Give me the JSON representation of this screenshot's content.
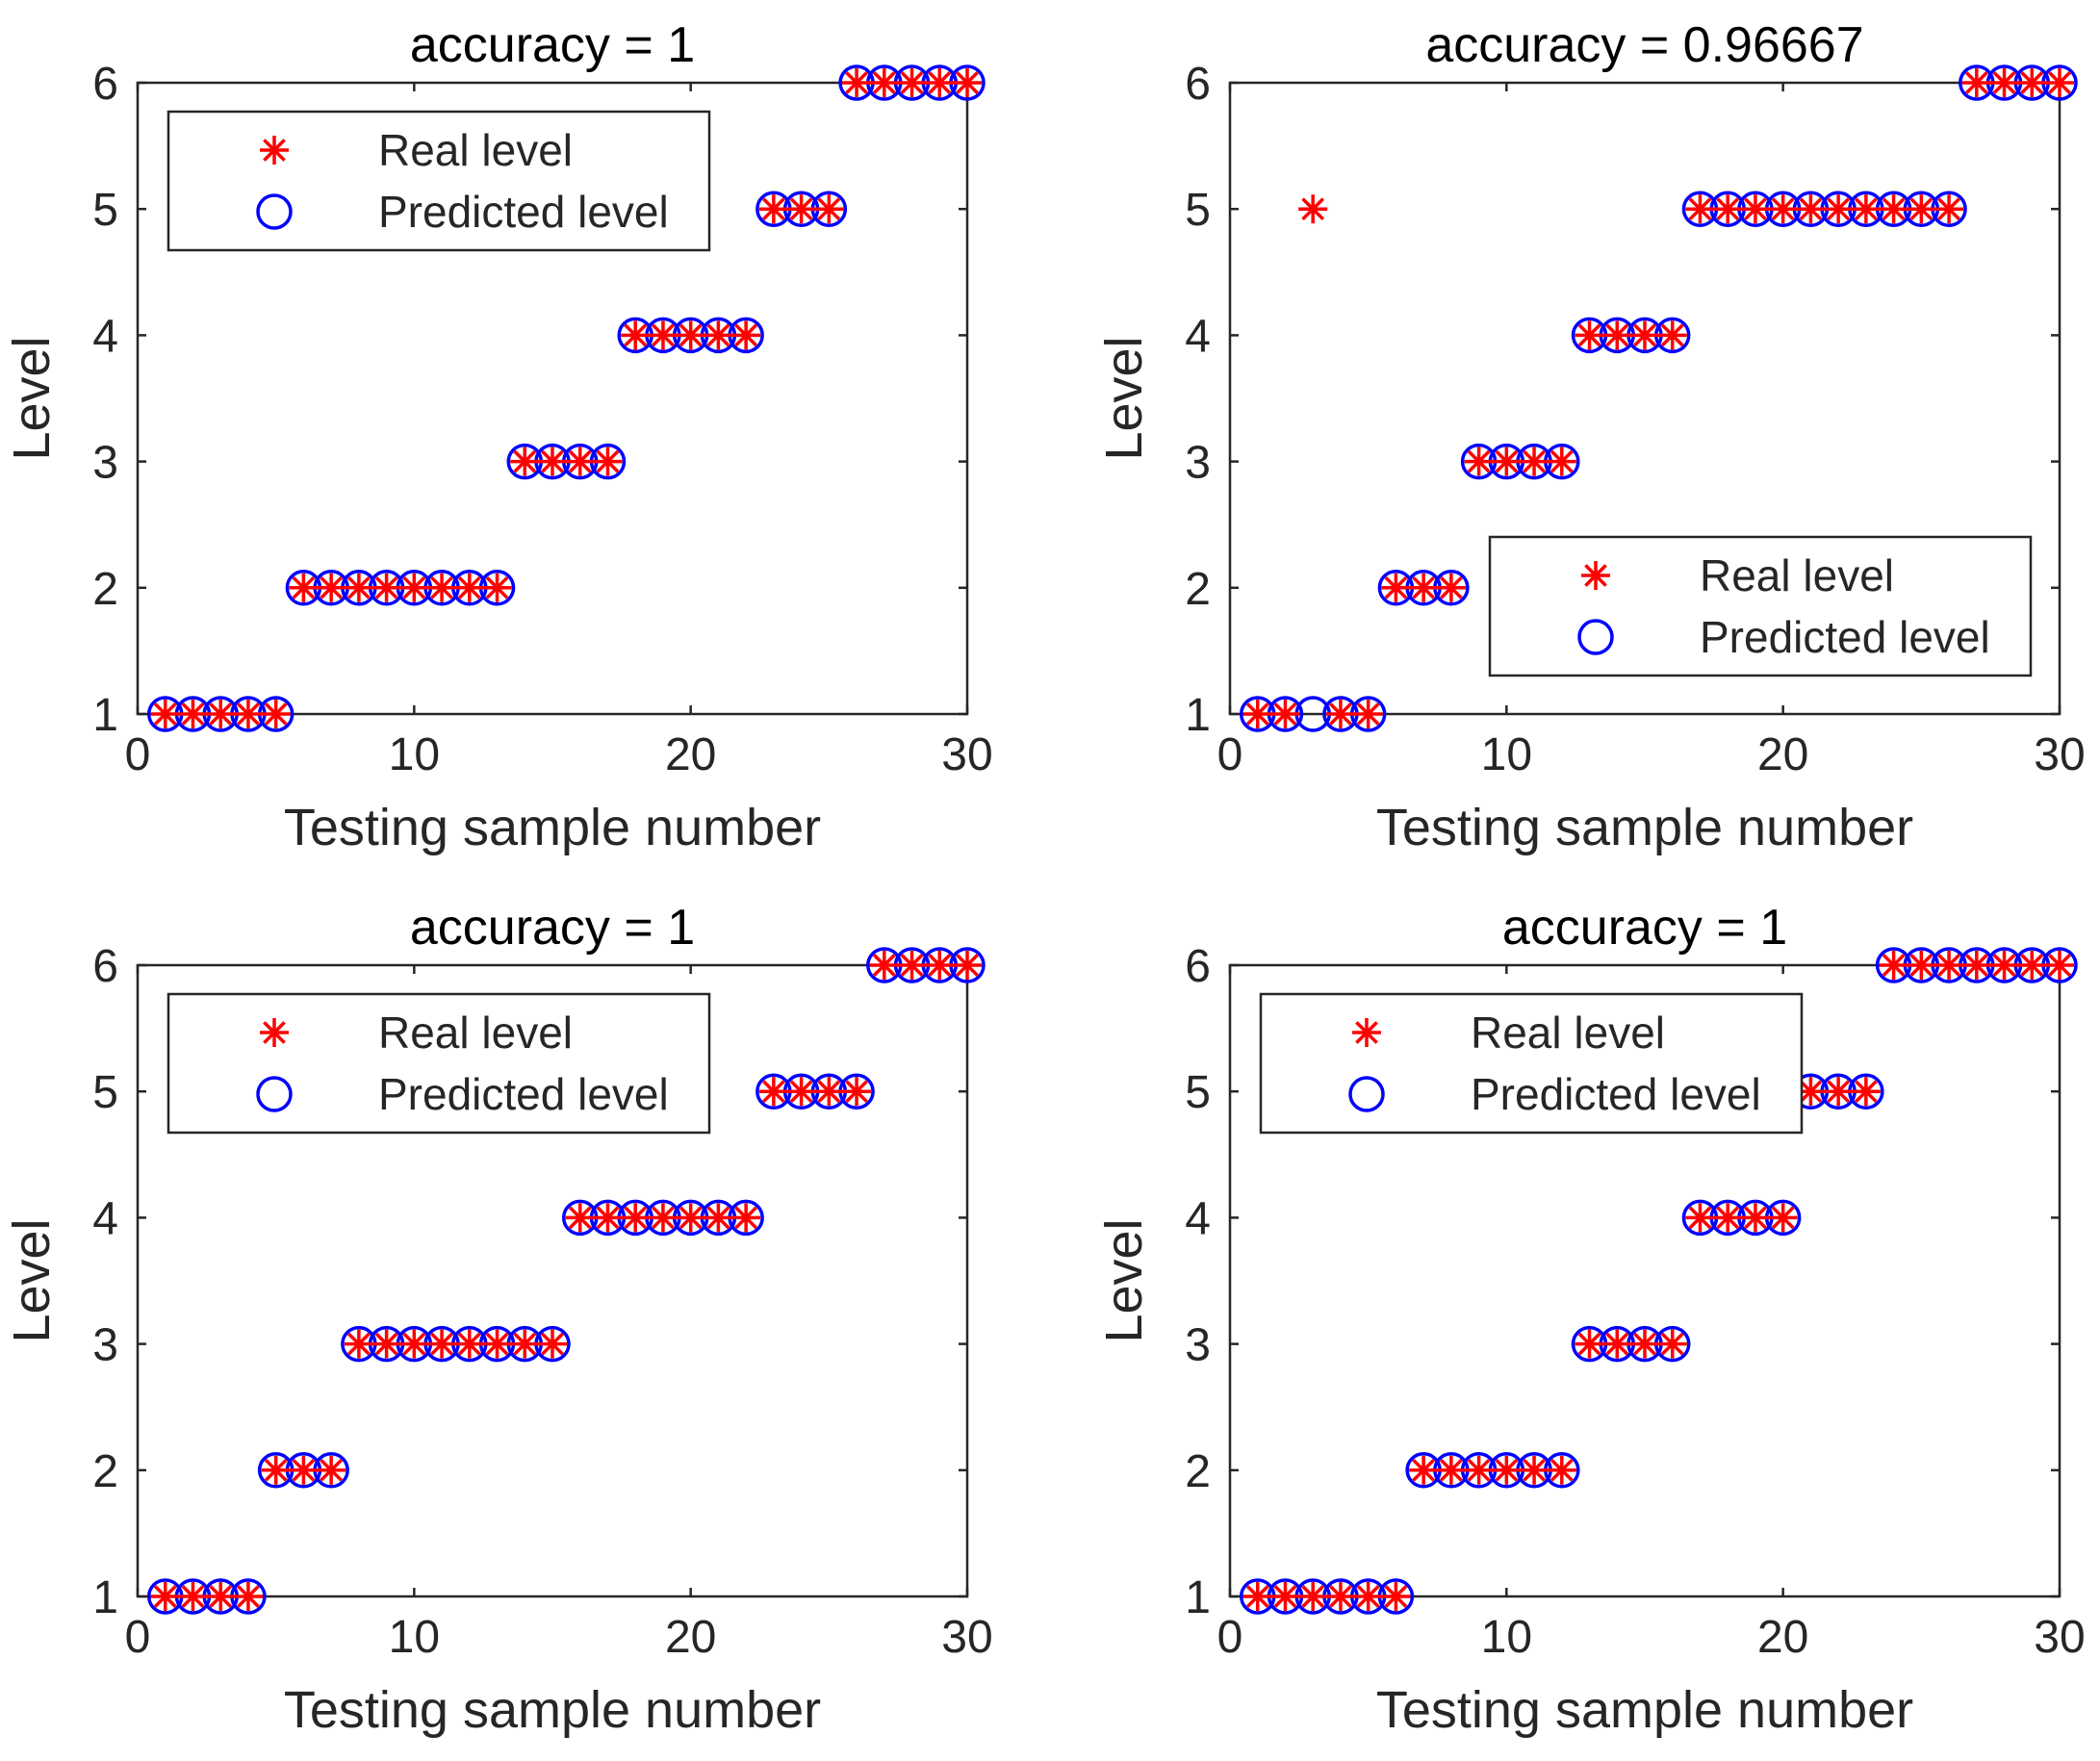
{
  "colors": {
    "real": "#ff0000",
    "predicted": "#0000ff",
    "axis": "#262626",
    "title": "#000000"
  },
  "chart_data": [
    {
      "type": "scatter",
      "title": "accuracy = 1",
      "xlabel": "Testing sample number",
      "ylabel": "Level",
      "xlim": [
        0,
        30
      ],
      "ylim": [
        1,
        6
      ],
      "xticks": [
        0,
        10,
        20,
        30
      ],
      "yticks": [
        1,
        2,
        3,
        4,
        5,
        6
      ],
      "legend": {
        "position": "top-left",
        "entries": [
          "Real level",
          "Predicted level"
        ]
      },
      "series": [
        {
          "name": "Real level",
          "marker": "asterisk",
          "x": [
            1,
            2,
            3,
            4,
            5,
            6,
            7,
            8,
            9,
            10,
            11,
            12,
            13,
            14,
            15,
            16,
            17,
            18,
            19,
            20,
            21,
            22,
            23,
            24,
            25,
            26,
            27,
            28,
            29,
            30
          ],
          "y": [
            1,
            1,
            1,
            1,
            1,
            2,
            2,
            2,
            2,
            2,
            2,
            2,
            2,
            3,
            3,
            3,
            3,
            4,
            4,
            4,
            4,
            4,
            5,
            5,
            5,
            6,
            6,
            6,
            6,
            6
          ]
        },
        {
          "name": "Predicted level",
          "marker": "circle",
          "x": [
            1,
            2,
            3,
            4,
            5,
            6,
            7,
            8,
            9,
            10,
            11,
            12,
            13,
            14,
            15,
            16,
            17,
            18,
            19,
            20,
            21,
            22,
            23,
            24,
            25,
            26,
            27,
            28,
            29,
            30
          ],
          "y": [
            1,
            1,
            1,
            1,
            1,
            2,
            2,
            2,
            2,
            2,
            2,
            2,
            2,
            3,
            3,
            3,
            3,
            4,
            4,
            4,
            4,
            4,
            5,
            5,
            5,
            6,
            6,
            6,
            6,
            6
          ]
        }
      ]
    },
    {
      "type": "scatter",
      "title": "accuracy = 0.96667",
      "xlabel": "Testing sample number",
      "ylabel": "Level",
      "xlim": [
        0,
        30
      ],
      "ylim": [
        1,
        6
      ],
      "xticks": [
        0,
        10,
        20,
        30
      ],
      "yticks": [
        1,
        2,
        3,
        4,
        5,
        6
      ],
      "legend": {
        "position": "bottom-right",
        "entries": [
          "Real level",
          "Predicted level"
        ]
      },
      "series": [
        {
          "name": "Real level",
          "marker": "asterisk",
          "x": [
            1,
            2,
            3,
            4,
            5,
            6,
            7,
            8,
            9,
            10,
            11,
            12,
            13,
            14,
            15,
            16,
            17,
            18,
            19,
            20,
            21,
            22,
            23,
            24,
            25,
            26,
            27,
            28,
            29,
            30
          ],
          "y": [
            1,
            1,
            5,
            1,
            1,
            2,
            2,
            2,
            3,
            3,
            3,
            3,
            4,
            4,
            4,
            4,
            5,
            5,
            5,
            5,
            5,
            5,
            5,
            5,
            5,
            5,
            6,
            6,
            6,
            6
          ]
        },
        {
          "name": "Predicted level",
          "marker": "circle",
          "x": [
            1,
            2,
            3,
            4,
            5,
            6,
            7,
            8,
            9,
            10,
            11,
            12,
            13,
            14,
            15,
            16,
            17,
            18,
            19,
            20,
            21,
            22,
            23,
            24,
            25,
            26,
            27,
            28,
            29,
            30
          ],
          "y": [
            1,
            1,
            1,
            1,
            1,
            2,
            2,
            2,
            3,
            3,
            3,
            3,
            4,
            4,
            4,
            4,
            5,
            5,
            5,
            5,
            5,
            5,
            5,
            5,
            5,
            5,
            6,
            6,
            6,
            6
          ]
        }
      ]
    },
    {
      "type": "scatter",
      "title": "accuracy = 1",
      "xlabel": "Testing sample number",
      "ylabel": "Level",
      "xlim": [
        0,
        30
      ],
      "ylim": [
        1,
        6
      ],
      "xticks": [
        0,
        10,
        20,
        30
      ],
      "yticks": [
        1,
        2,
        3,
        4,
        5,
        6
      ],
      "legend": {
        "position": "top-left",
        "entries": [
          "Real level",
          "Predicted level"
        ]
      },
      "series": [
        {
          "name": "Real level",
          "marker": "asterisk",
          "x": [
            1,
            2,
            3,
            4,
            5,
            6,
            7,
            8,
            9,
            10,
            11,
            12,
            13,
            14,
            15,
            16,
            17,
            18,
            19,
            20,
            21,
            22,
            23,
            24,
            25,
            26,
            27,
            28,
            29,
            30
          ],
          "y": [
            1,
            1,
            1,
            1,
            2,
            2,
            2,
            3,
            3,
            3,
            3,
            3,
            3,
            3,
            3,
            4,
            4,
            4,
            4,
            4,
            4,
            4,
            5,
            5,
            5,
            5,
            6,
            6,
            6,
            6
          ]
        },
        {
          "name": "Predicted level",
          "marker": "circle",
          "x": [
            1,
            2,
            3,
            4,
            5,
            6,
            7,
            8,
            9,
            10,
            11,
            12,
            13,
            14,
            15,
            16,
            17,
            18,
            19,
            20,
            21,
            22,
            23,
            24,
            25,
            26,
            27,
            28,
            29,
            30
          ],
          "y": [
            1,
            1,
            1,
            1,
            2,
            2,
            2,
            3,
            3,
            3,
            3,
            3,
            3,
            3,
            3,
            4,
            4,
            4,
            4,
            4,
            4,
            4,
            5,
            5,
            5,
            5,
            6,
            6,
            6,
            6
          ]
        }
      ]
    },
    {
      "type": "scatter",
      "title": "accuracy = 1",
      "xlabel": "Testing sample number",
      "ylabel": "Level",
      "xlim": [
        0,
        30
      ],
      "ylim": [
        1,
        6
      ],
      "xticks": [
        0,
        10,
        20,
        30
      ],
      "yticks": [
        1,
        2,
        3,
        4,
        5,
        6
      ],
      "legend": {
        "position": "top-left",
        "entries": [
          "Real level",
          "Predicted level"
        ]
      },
      "series": [
        {
          "name": "Real level",
          "marker": "asterisk",
          "x": [
            1,
            2,
            3,
            4,
            5,
            6,
            7,
            8,
            9,
            10,
            11,
            12,
            13,
            14,
            15,
            16,
            17,
            18,
            19,
            20,
            21,
            22,
            23,
            24,
            25,
            26,
            27,
            28,
            29,
            30
          ],
          "y": [
            1,
            1,
            1,
            1,
            1,
            1,
            2,
            2,
            2,
            2,
            2,
            2,
            3,
            3,
            3,
            3,
            4,
            4,
            4,
            4,
            5,
            5,
            5,
            6,
            6,
            6,
            6,
            6,
            6,
            6
          ]
        },
        {
          "name": "Predicted level",
          "marker": "circle",
          "x": [
            1,
            2,
            3,
            4,
            5,
            6,
            7,
            8,
            9,
            10,
            11,
            12,
            13,
            14,
            15,
            16,
            17,
            18,
            19,
            20,
            21,
            22,
            23,
            24,
            25,
            26,
            27,
            28,
            29,
            30
          ],
          "y": [
            1,
            1,
            1,
            1,
            1,
            1,
            2,
            2,
            2,
            2,
            2,
            2,
            3,
            3,
            3,
            3,
            4,
            4,
            4,
            4,
            5,
            5,
            5,
            6,
            6,
            6,
            6,
            6,
            6,
            6
          ]
        }
      ]
    }
  ]
}
